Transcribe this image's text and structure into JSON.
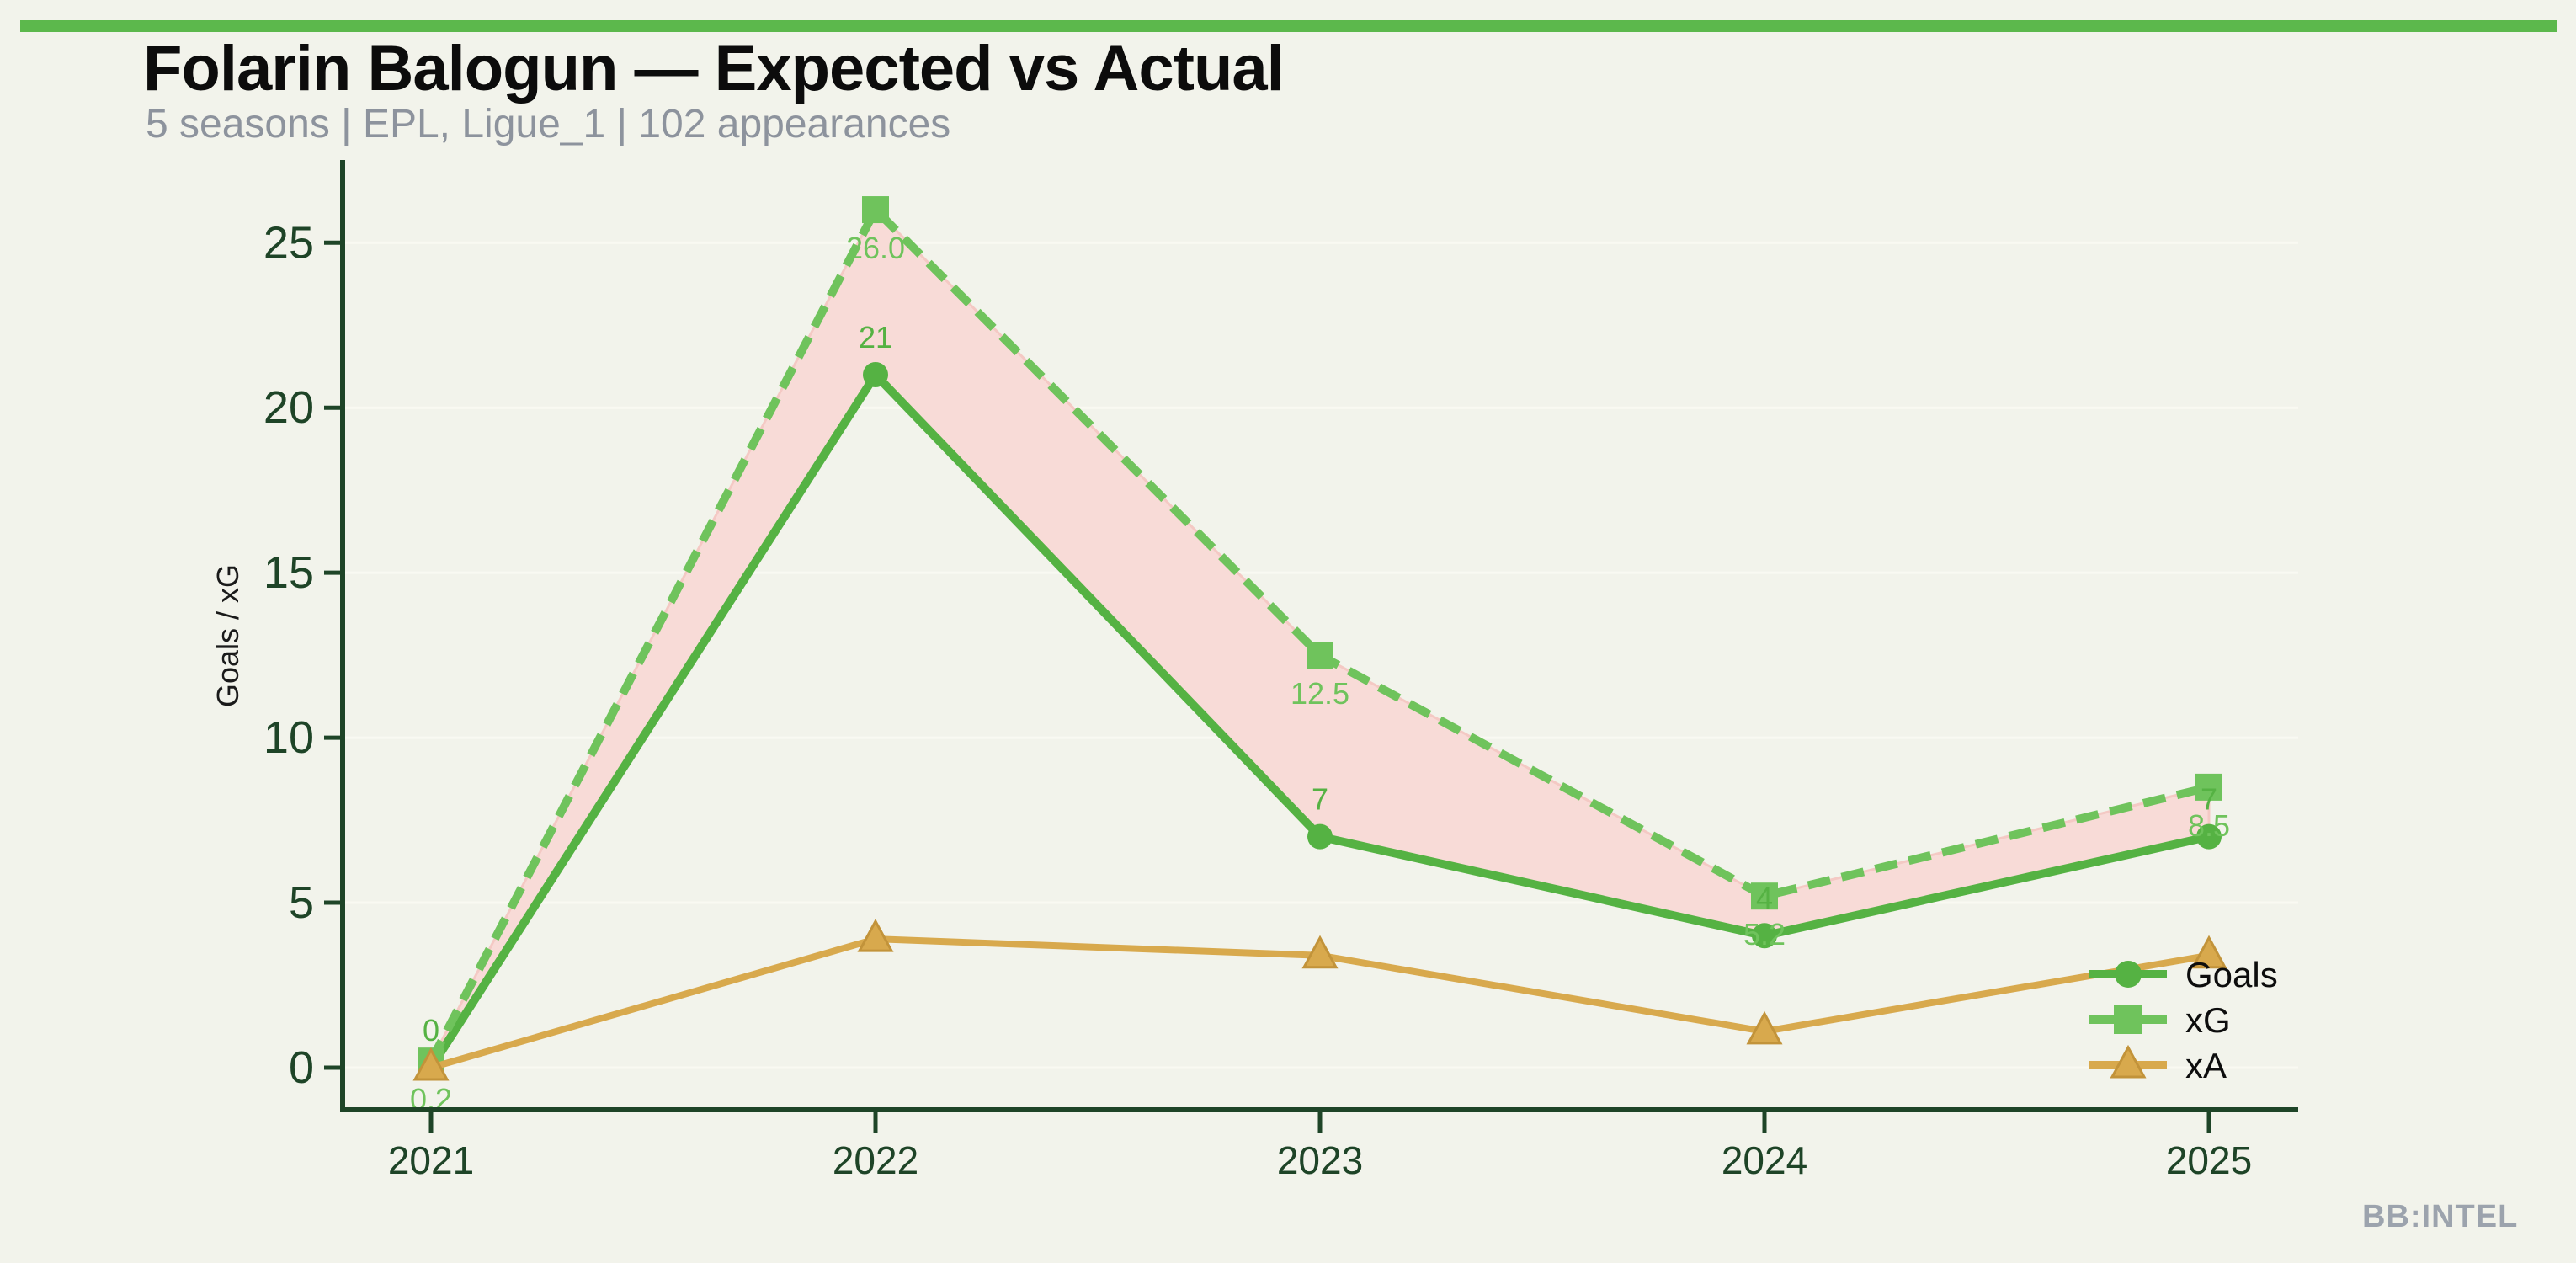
{
  "page": {
    "title": "Folarin Balogun — Expected vs Actual",
    "subtitle": "5 seasons | EPL, Ligue_1 | 102 appearances",
    "watermark": "BB:INTEL"
  },
  "chart_data": {
    "type": "line",
    "title": "Folarin Balogun — Expected vs Actual",
    "x": [
      2021,
      2022,
      2023,
      2024,
      2025
    ],
    "x_tick_labels": [
      "2021",
      "2022",
      "2023",
      "2024",
      "2025"
    ],
    "series": [
      {
        "name": "Goals",
        "values": [
          0,
          21,
          7,
          4,
          7
        ],
        "point_labels": [
          "0",
          "21",
          "7",
          "4",
          "7"
        ],
        "label_side": "above",
        "color": "#55b243",
        "marker": "circle",
        "line_style": "solid"
      },
      {
        "name": "xG",
        "values": [
          0.2,
          26.0,
          12.5,
          5.2,
          8.5
        ],
        "point_labels": [
          "0.2",
          "26.0",
          "12.5",
          "5.2",
          "8.5"
        ],
        "label_side": "below",
        "color": "#6fc35c",
        "marker": "square",
        "line_style": "dashed"
      },
      {
        "name": "xA",
        "values": [
          0.0,
          3.9,
          3.4,
          1.1,
          3.4
        ],
        "point_labels": [],
        "label_side": "none",
        "color": "#d8a94d",
        "marker": "triangle",
        "line_style": "solid"
      }
    ],
    "fill_between": {
      "upper": "xG",
      "lower": "Goals",
      "fill_color": "#f8dbd7",
      "edge_color": "#f4c9c4"
    },
    "ylabel": "Goals / xG",
    "xlabel": "",
    "yticks": [
      0,
      5,
      10,
      15,
      20,
      25
    ],
    "ylim": [
      -1.5,
      27.5
    ],
    "legend": [
      "Goals",
      "xG",
      "xA"
    ],
    "legend_position": "lower right",
    "grid": "faint horizontal gridlines at y ticks"
  },
  "colors": {
    "background": "#f2f3eb",
    "accent_bar": "#5cb84c",
    "axis": "#1e4427",
    "gridline": "#f9f9f2",
    "goals": "#55b243",
    "xg": "#6fc35c",
    "xa": "#d8a94d",
    "xa_edge": "#c2933a",
    "fill": "#f8dbd7",
    "fill_edge": "#f4c9c4",
    "subtitle_gray": "#8d939d",
    "watermark_gray": "#9ca3ad"
  }
}
